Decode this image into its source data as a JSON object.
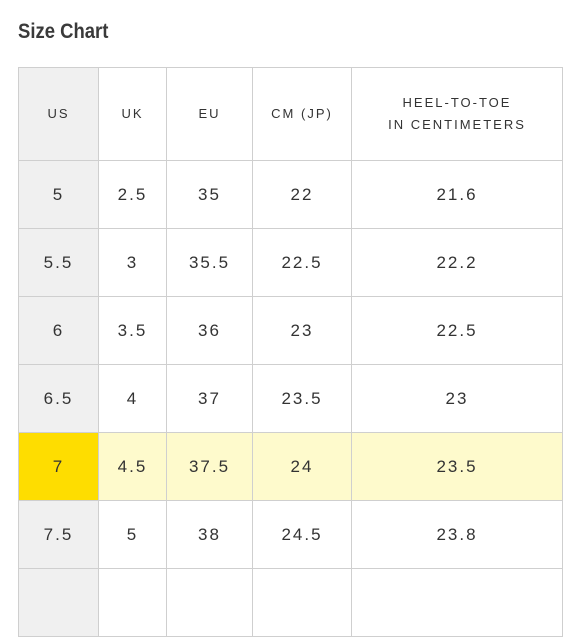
{
  "title": "Size Chart",
  "table": {
    "headers": [
      [
        "US"
      ],
      [
        "UK"
      ],
      [
        "EU"
      ],
      [
        "CM (JP)"
      ],
      [
        "HEEL-TO-TOE",
        "IN CENTIMETERS"
      ]
    ],
    "rows": [
      [
        "5",
        "2.5",
        "35",
        "22",
        "21.6"
      ],
      [
        "5.5",
        "3",
        "35.5",
        "22.5",
        "22.2"
      ],
      [
        "6",
        "3.5",
        "36",
        "23",
        "22.5"
      ],
      [
        "6.5",
        "4",
        "37",
        "23.5",
        "23"
      ],
      [
        "7",
        "4.5",
        "37.5",
        "24",
        "23.5"
      ],
      [
        "7.5",
        "5",
        "38",
        "24.5",
        "23.8"
      ]
    ],
    "highlighted_row": 4
  }
}
